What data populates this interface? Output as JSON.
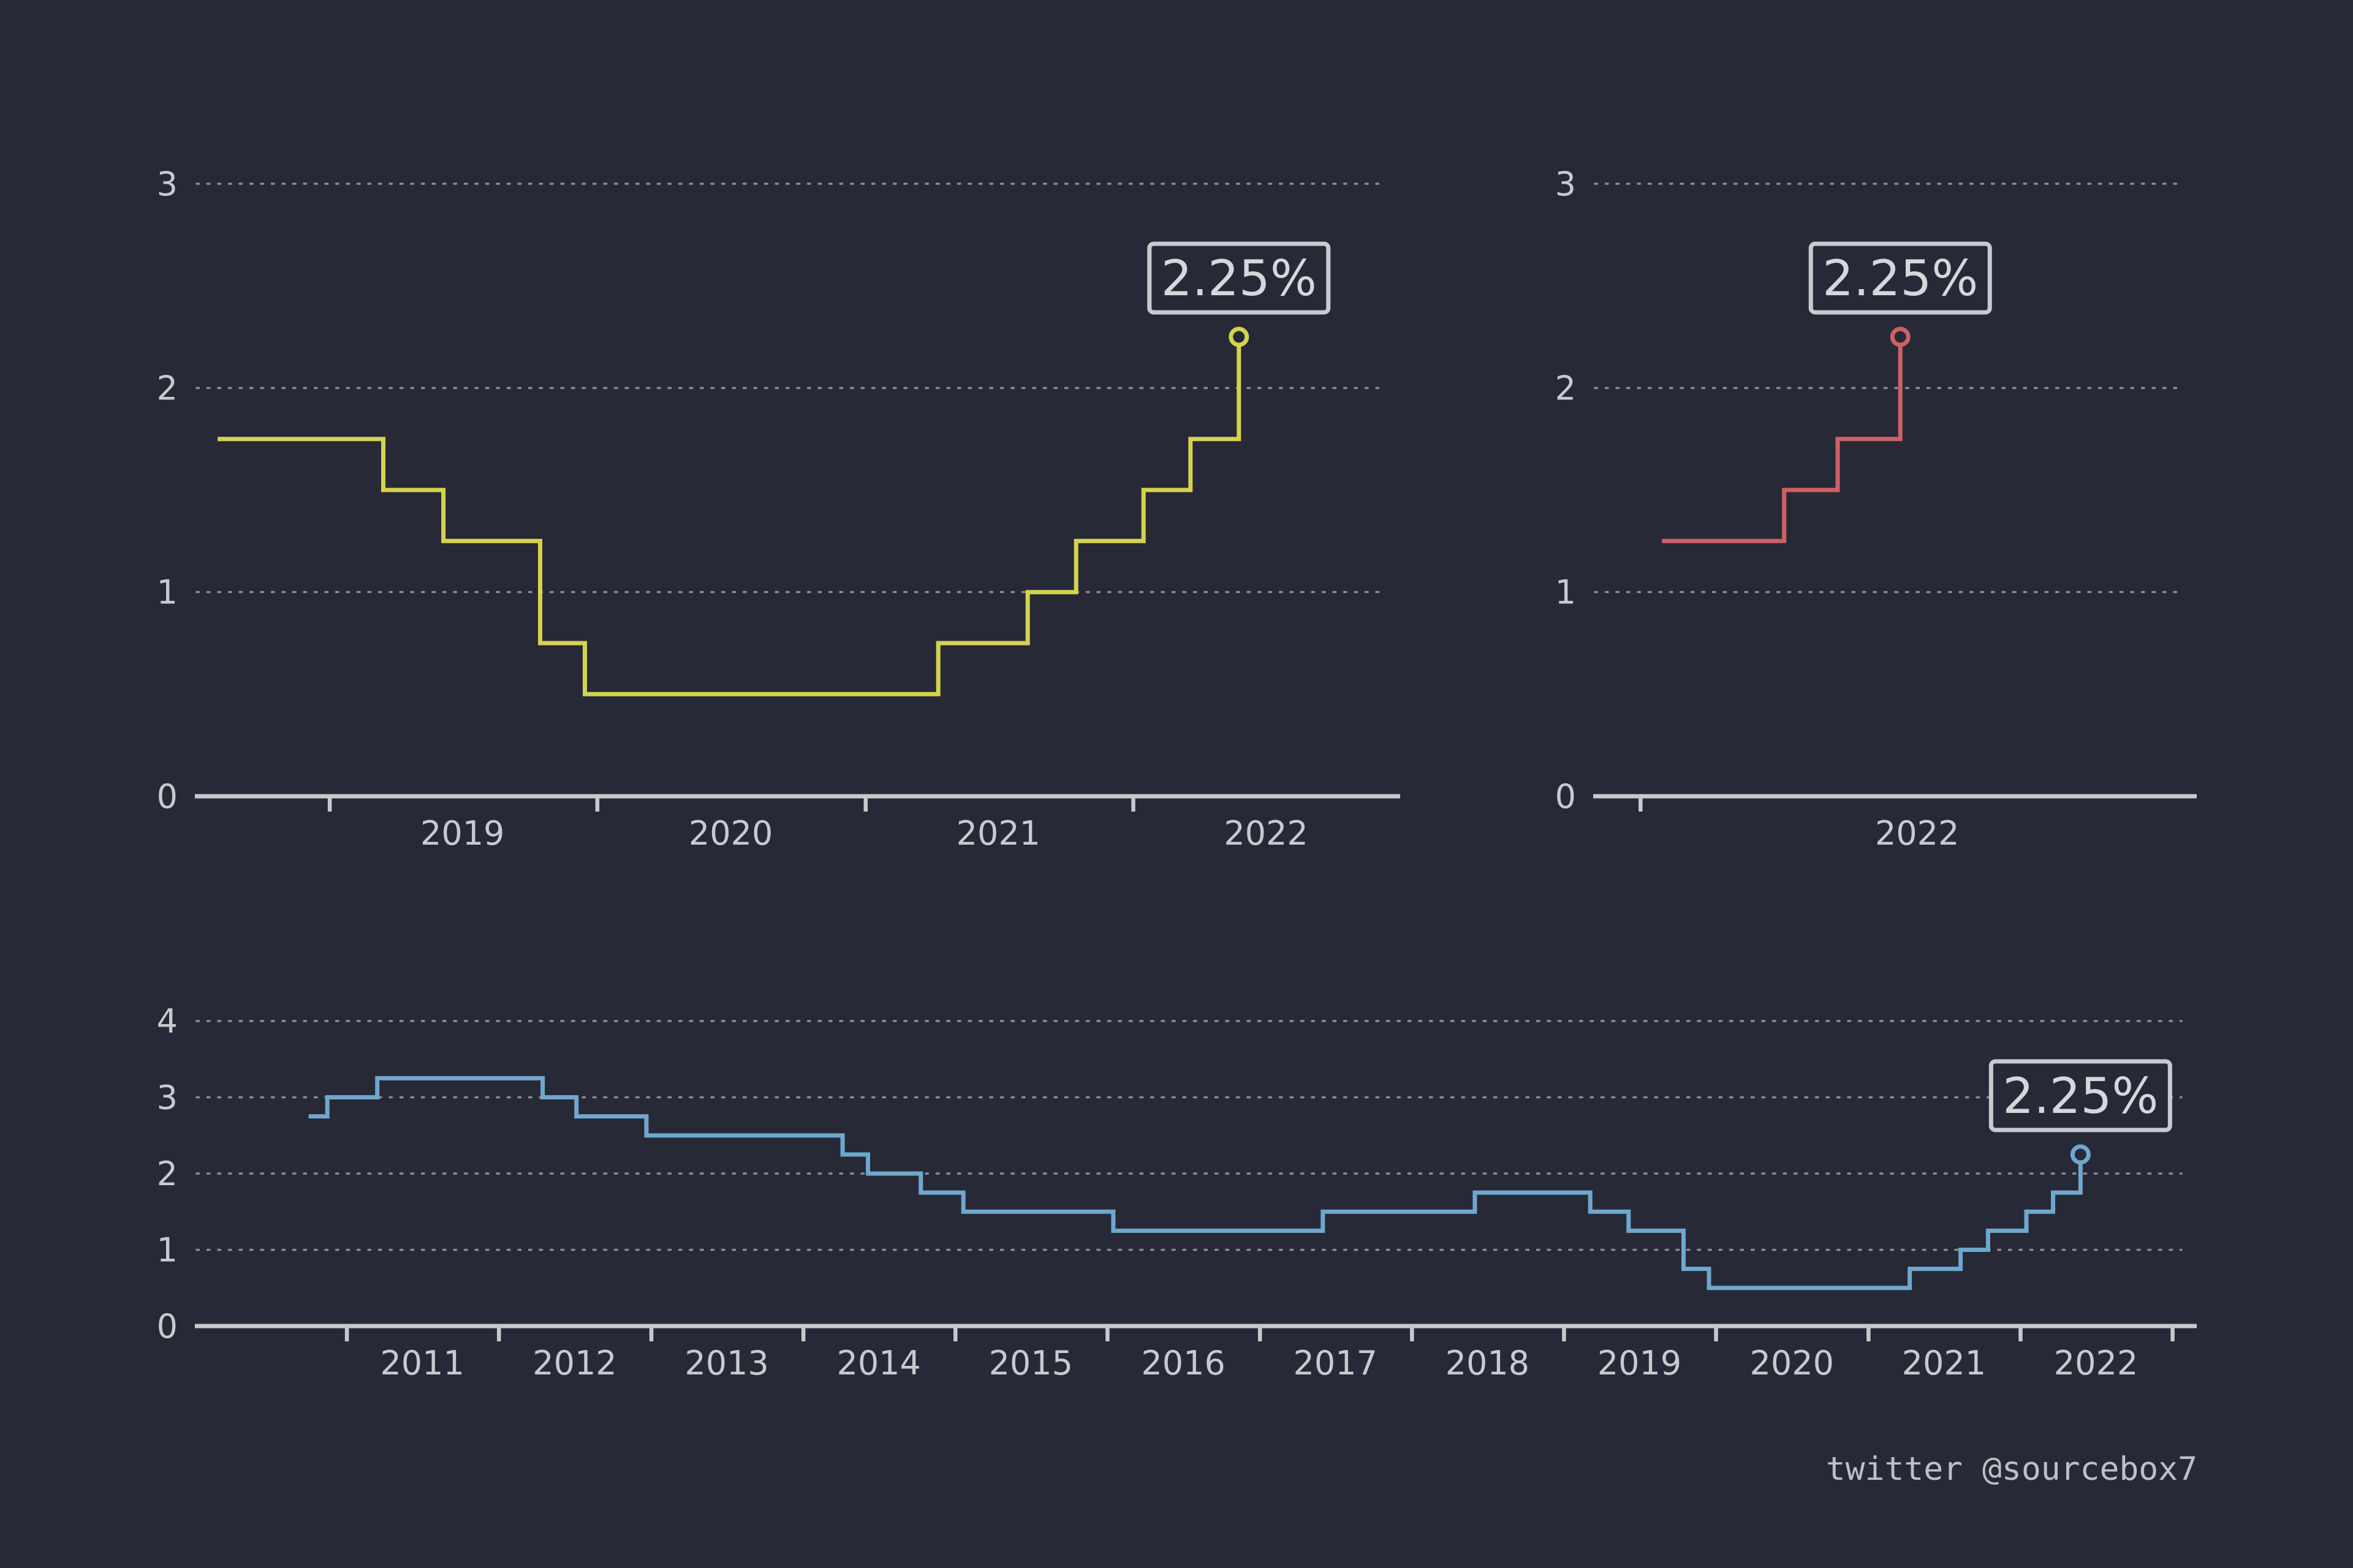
{
  "colors": {
    "background": "#272936",
    "axis": "#c8c9cd",
    "grid": "#8c8e97",
    "text": "#c9cacf"
  },
  "chart_data": [
    {
      "type": "line",
      "step": true,
      "color": "#d4d34e",
      "x_axis": "date",
      "ylim": [
        0,
        3
      ],
      "yticks": [
        "0",
        "1",
        "2",
        "3"
      ],
      "xlim": [
        "2018-07-01",
        "2022-12-31"
      ],
      "xtick_labels": [
        "2019",
        "2020",
        "2021",
        "2022"
      ],
      "grid": true,
      "callout": "2.25%",
      "x": [
        "2018-08-01",
        "2019-03-15",
        "2019-06-05",
        "2019-10-15",
        "2019-12-15",
        "2021-04-10",
        "2021-08-10",
        "2021-10-15",
        "2022-01-15",
        "2022-03-20",
        "2022-05-25"
      ],
      "y": [
        1.75,
        1.5,
        1.25,
        0.75,
        0.5,
        0.75,
        1.0,
        1.25,
        1.5,
        1.75,
        2.25
      ]
    },
    {
      "type": "line",
      "step": true,
      "color": "#cc6166",
      "x_axis": "date",
      "ylim": [
        0,
        3
      ],
      "yticks": [
        "0",
        "1",
        "2",
        "3"
      ],
      "xlim": [
        "2021-12-01",
        "2022-12-31"
      ],
      "xtick_labels": [
        "2022"
      ],
      "grid": true,
      "callout": "2.25%",
      "x": [
        "2022-01-15",
        "2022-04-05",
        "2022-05-10",
        "2022-06-20"
      ],
      "y": [
        1.25,
        1.5,
        1.75,
        2.25
      ]
    },
    {
      "type": "line",
      "step": true,
      "color": "#6fa7cd",
      "x_axis": "date",
      "ylim": [
        0,
        4
      ],
      "yticks": [
        "0",
        "1",
        "2",
        "3",
        "4"
      ],
      "xlim": [
        "2010-01-01",
        "2023-02-28"
      ],
      "xtick_labels": [
        "2011",
        "2012",
        "2013",
        "2014",
        "2015",
        "2016",
        "2017",
        "2018",
        "2019",
        "2020",
        "2021",
        "2022"
      ],
      "grid": true,
      "callout": "2.25%",
      "x": [
        "2010-10-01",
        "2010-11-15",
        "2011-03-15",
        "2012-04-15",
        "2012-07-05",
        "2012-12-20",
        "2014-04-05",
        "2014-06-05",
        "2014-10-10",
        "2015-01-20",
        "2016-01-15",
        "2017-06-01",
        "2018-06-01",
        "2019-03-05",
        "2019-06-05",
        "2019-10-15",
        "2019-12-15",
        "2021-04-10",
        "2021-08-10",
        "2021-10-15",
        "2022-01-15",
        "2022-03-20",
        "2022-05-25"
      ],
      "y": [
        2.75,
        3.0,
        3.25,
        3.0,
        2.75,
        2.5,
        2.25,
        2.0,
        1.75,
        1.5,
        1.25,
        1.5,
        1.75,
        1.5,
        1.25,
        0.75,
        0.5,
        0.75,
        1.0,
        1.25,
        1.5,
        1.75,
        2.25
      ]
    }
  ],
  "footer": {
    "credit": "twitter @sourcebox7"
  }
}
